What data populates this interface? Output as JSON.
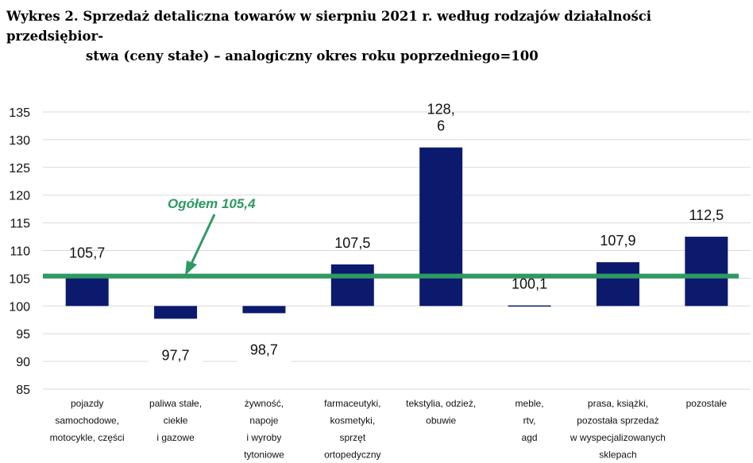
{
  "title": {
    "line1": "Wykres 2. Sprzedaż detaliczna towarów w sierpniu 2021 r. według rodzajów działalności przedsiębior-",
    "line2": "stwa (ceny stałe) – analogiczny okres roku poprzedniego=100"
  },
  "chart_data": {
    "type": "bar",
    "title": "Wykres 2. Sprzedaż detaliczna towarów w sierpniu 2021 r. według rodzajów działalności przedsiębiorstwa (ceny stałe) – analogiczny okres roku poprzedniego=100",
    "categories": [
      [
        "pojazdy",
        "samochodowe,",
        "motocykle, części"
      ],
      [
        "paliwa stałe,",
        "ciekłe",
        "i gazowe"
      ],
      [
        "żywność,",
        "napoje",
        "i wyroby",
        "tytoniowe"
      ],
      [
        "farmaceutyki,",
        "kosmetyki,",
        "sprzęt",
        "ortopedyczny"
      ],
      [
        "tekstylia, odzież,",
        "obuwie"
      ],
      [
        "meble,",
        "rtv,",
        "agd"
      ],
      [
        "prasa, książki,",
        "pozostała sprzedaż",
        "w wyspecjalizowanych",
        "sklepach"
      ],
      [
        "pozostałe"
      ]
    ],
    "values": [
      105.7,
      97.7,
      98.7,
      107.5,
      128.6,
      100.1,
      107.9,
      112.5
    ],
    "data_labels": [
      [
        "105,7"
      ],
      [
        "97,7"
      ],
      [
        "98,7"
      ],
      [
        "107,5"
      ],
      [
        "128,",
        "6"
      ],
      [
        "100,1"
      ],
      [
        "107,9"
      ],
      [
        "112,5"
      ]
    ],
    "baseline": 100,
    "ylim": [
      85,
      135
    ],
    "yticks": [
      "85",
      "90",
      "95",
      "100",
      "105",
      "110",
      "115",
      "120",
      "125",
      "130",
      "135"
    ],
    "grid": true,
    "reference_line": {
      "value": 105.4,
      "label": "Ogółem 105,4"
    },
    "colors": {
      "bar": "#0c1a6e",
      "reference": "#2e9a62",
      "grid": "#d9d9d9"
    }
  }
}
